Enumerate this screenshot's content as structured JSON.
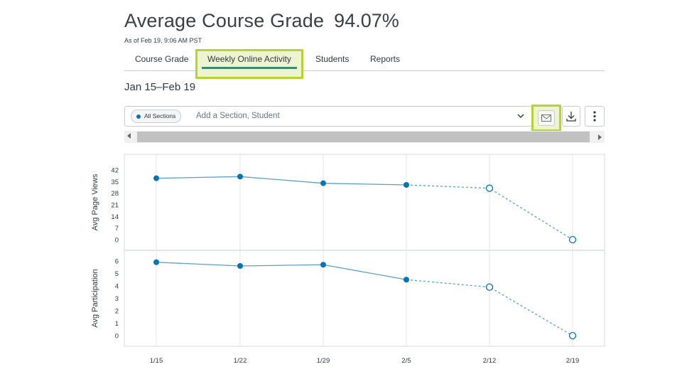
{
  "header": {
    "title": "Average Course Grade",
    "value": "94.07%",
    "as_of": "As of Feb 19, 9:06 AM PST"
  },
  "tabs": [
    {
      "label": "Course Grade",
      "active": false
    },
    {
      "label": "Weekly Online Activity",
      "active": true
    },
    {
      "label": "Students",
      "active": false
    },
    {
      "label": "Reports",
      "active": false
    }
  ],
  "date_range": "Jan 15–Feb 19",
  "filter": {
    "pill_label": "All Sections",
    "placeholder": "Add a Section, Student"
  },
  "toolbar": {
    "message_icon": "envelope-icon",
    "download_icon": "download-icon",
    "more_icon": "kebab-menu-icon"
  },
  "colors": {
    "accent": "#0374b5",
    "highlight": "#b5d332",
    "tab_underline": "#3d8a6e"
  },
  "chart_data": [
    {
      "type": "line",
      "ylabel": "Avg Page Views",
      "ylim": [
        0,
        42
      ],
      "yticks": [
        0,
        7,
        14,
        21,
        28,
        35,
        42
      ],
      "categories": [
        "1/15",
        "1/22",
        "1/29",
        "2/5",
        "2/12",
        "2/19"
      ],
      "values": [
        37,
        38,
        34,
        33,
        31,
        0
      ],
      "projected_from_index": 3,
      "grid": true
    },
    {
      "type": "line",
      "ylabel": "Avg Participation",
      "ylim": [
        0,
        6
      ],
      "yticks": [
        0,
        1,
        2,
        3,
        4,
        5,
        6
      ],
      "categories": [
        "1/15",
        "1/22",
        "1/29",
        "2/5",
        "2/12",
        "2/19"
      ],
      "values": [
        5.9,
        5.6,
        5.7,
        4.5,
        3.9,
        0
      ],
      "projected_from_index": 3,
      "grid": true
    }
  ]
}
